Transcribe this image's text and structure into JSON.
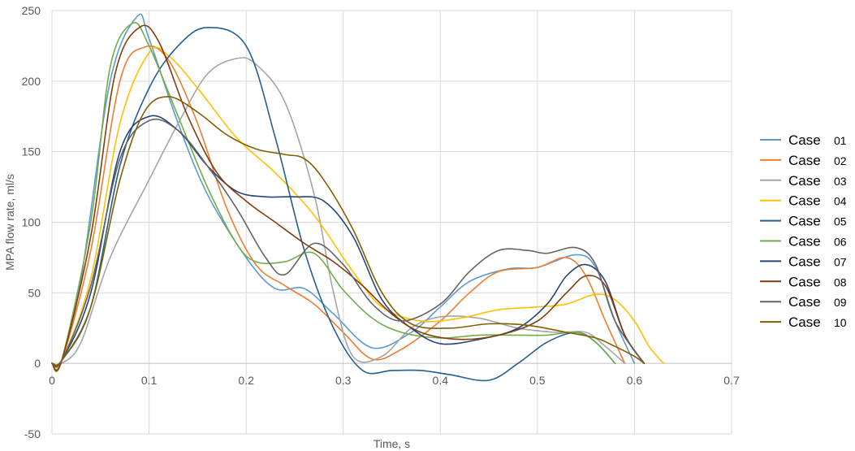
{
  "chart_data": {
    "type": "line",
    "xlabel": "Time, s",
    "ylabel": "MPA flow rate, ml/s",
    "xlim": [
      0,
      0.7
    ],
    "ylim": [
      -50,
      250
    ],
    "xticks": [
      0,
      0.1,
      0.2,
      0.3,
      0.4,
      0.5,
      0.6,
      0.7
    ],
    "xtick_labels": [
      "0",
      "0.1",
      "0.2",
      "0.3",
      "0.4",
      "0.5",
      "0.6",
      "0.7"
    ],
    "yticks": [
      -50,
      0,
      50,
      100,
      150,
      200,
      250
    ],
    "ytick_labels": [
      "-50",
      "0",
      "50",
      "100",
      "150",
      "200",
      "250"
    ],
    "grid": "vertical and horizontal",
    "legend_position": "right",
    "series": [
      {
        "name": "Case 01",
        "label_word": "Case",
        "label_num": "01",
        "color": "#5b9bd5",
        "x": [
          0,
          0.01,
          0.03,
          0.06,
          0.088,
          0.1,
          0.13,
          0.16,
          0.2,
          0.23,
          0.26,
          0.29,
          0.33,
          0.37,
          0.4,
          0.43,
          0.47,
          0.5,
          0.54,
          0.56,
          0.58,
          0.6
        ],
        "y": [
          0,
          2,
          60,
          200,
          246,
          230,
          170,
          120,
          75,
          53,
          53,
          35,
          11,
          22,
          40,
          58,
          67,
          68,
          77,
          68,
          30,
          0
        ]
      },
      {
        "name": "Case 02",
        "label_word": "Case",
        "label_num": "02",
        "color": "#ed7d31",
        "x": [
          0,
          0.01,
          0.04,
          0.07,
          0.095,
          0.12,
          0.15,
          0.18,
          0.21,
          0.24,
          0.27,
          0.3,
          0.33,
          0.36,
          0.4,
          0.43,
          0.46,
          0.5,
          0.53,
          0.55,
          0.57,
          0.59
        ],
        "y": [
          0,
          2,
          80,
          200,
          224,
          215,
          170,
          110,
          70,
          55,
          42,
          22,
          3,
          10,
          30,
          50,
          65,
          68,
          75,
          62,
          30,
          0
        ]
      },
      {
        "name": "Case 03",
        "label_word": "Case",
        "label_num": "03",
        "color": "#a5a5a5",
        "x": [
          0,
          0.01,
          0.03,
          0.06,
          0.1,
          0.13,
          0.16,
          0.19,
          0.21,
          0.24,
          0.27,
          0.29,
          0.31,
          0.34,
          0.37,
          0.4,
          0.44,
          0.48,
          0.52,
          0.55,
          0.57,
          0.59
        ],
        "y": [
          0,
          0,
          15,
          75,
          130,
          170,
          205,
          216,
          212,
          185,
          120,
          50,
          5,
          5,
          25,
          33,
          32,
          25,
          22,
          22,
          12,
          0
        ]
      },
      {
        "name": "Case 04",
        "label_word": "Case",
        "label_num": "04",
        "color": "#ffc000",
        "x": [
          0,
          0.01,
          0.04,
          0.07,
          0.1,
          0.12,
          0.15,
          0.19,
          0.23,
          0.27,
          0.31,
          0.34,
          0.38,
          0.42,
          0.46,
          0.5,
          0.53,
          0.56,
          0.58,
          0.6,
          0.615,
          0.63
        ],
        "y": [
          0,
          2,
          60,
          170,
          220,
          218,
          195,
          160,
          135,
          105,
          65,
          40,
          30,
          32,
          38,
          40,
          42,
          49,
          45,
          30,
          12,
          0
        ]
      },
      {
        "name": "Case 05",
        "label_word": "Case",
        "label_num": "05",
        "color": "#255e91",
        "x": [
          0,
          0.01,
          0.04,
          0.07,
          0.1,
          0.13,
          0.16,
          0.2,
          0.23,
          0.26,
          0.29,
          0.32,
          0.35,
          0.38,
          0.41,
          0.45,
          0.48,
          0.51,
          0.54,
          0.56,
          0.58
        ],
        "y": [
          0,
          2,
          40,
          140,
          195,
          225,
          238,
          225,
          160,
          80,
          25,
          -5,
          -5,
          -5,
          -8,
          -12,
          0,
          15,
          22,
          15,
          0
        ]
      },
      {
        "name": "Case 06",
        "label_word": "Case",
        "label_num": "06",
        "color": "#70ad47",
        "x": [
          0,
          0.01,
          0.04,
          0.06,
          0.083,
          0.1,
          0.13,
          0.16,
          0.19,
          0.21,
          0.24,
          0.27,
          0.3,
          0.33,
          0.36,
          0.4,
          0.44,
          0.48,
          0.51,
          0.54,
          0.56,
          0.58
        ],
        "y": [
          0,
          2,
          100,
          210,
          241,
          225,
          175,
          125,
          85,
          72,
          72,
          78,
          52,
          32,
          22,
          18,
          20,
          20,
          20,
          22,
          15,
          0
        ]
      },
      {
        "name": "Case 07",
        "label_word": "Case",
        "label_num": "07",
        "color": "#264478",
        "x": [
          0,
          0.01,
          0.04,
          0.07,
          0.1,
          0.13,
          0.16,
          0.19,
          0.22,
          0.25,
          0.28,
          0.31,
          0.34,
          0.37,
          0.4,
          0.44,
          0.48,
          0.51,
          0.53,
          0.55,
          0.57,
          0.59,
          0.61
        ],
        "y": [
          0,
          2,
          50,
          150,
          175,
          165,
          140,
          122,
          118,
          118,
          115,
          90,
          45,
          25,
          14,
          17,
          25,
          42,
          62,
          70,
          58,
          20,
          0
        ]
      },
      {
        "name": "Case 08",
        "label_word": "Case",
        "label_num": "08",
        "color": "#843c0c",
        "x": [
          0,
          0.01,
          0.04,
          0.065,
          0.09,
          0.11,
          0.14,
          0.17,
          0.2,
          0.23,
          0.26,
          0.29,
          0.32,
          0.35,
          0.38,
          0.42,
          0.46,
          0.5,
          0.53,
          0.55,
          0.57,
          0.59,
          0.61
        ],
        "y": [
          0,
          2,
          90,
          205,
          238,
          228,
          175,
          135,
          115,
          100,
          85,
          72,
          55,
          35,
          22,
          17,
          20,
          30,
          50,
          62,
          55,
          20,
          0
        ]
      },
      {
        "name": "Case 09",
        "label_word": "Case",
        "label_num": "09",
        "color": "#636363",
        "x": [
          0,
          0.01,
          0.04,
          0.07,
          0.1,
          0.13,
          0.16,
          0.19,
          0.22,
          0.24,
          0.27,
          0.3,
          0.33,
          0.36,
          0.4,
          0.43,
          0.46,
          0.49,
          0.51,
          0.54,
          0.56,
          0.58,
          0.61
        ],
        "y": [
          0,
          2,
          55,
          145,
          172,
          165,
          140,
          110,
          75,
          63,
          85,
          70,
          42,
          30,
          42,
          65,
          80,
          80,
          78,
          82,
          70,
          30,
          0
        ]
      },
      {
        "name": "Case 10",
        "label_word": "Case",
        "label_num": "10",
        "color": "#7f6000",
        "x": [
          0,
          0.01,
          0.04,
          0.07,
          0.095,
          0.12,
          0.15,
          0.18,
          0.21,
          0.24,
          0.26,
          0.28,
          0.31,
          0.34,
          0.37,
          0.41,
          0.45,
          0.49,
          0.53,
          0.56,
          0.58,
          0.6,
          0.61
        ],
        "y": [
          0,
          2,
          40,
          130,
          178,
          189,
          178,
          162,
          152,
          148,
          145,
          130,
          95,
          50,
          28,
          25,
          28,
          27,
          22,
          18,
          12,
          5,
          0
        ]
      }
    ]
  }
}
